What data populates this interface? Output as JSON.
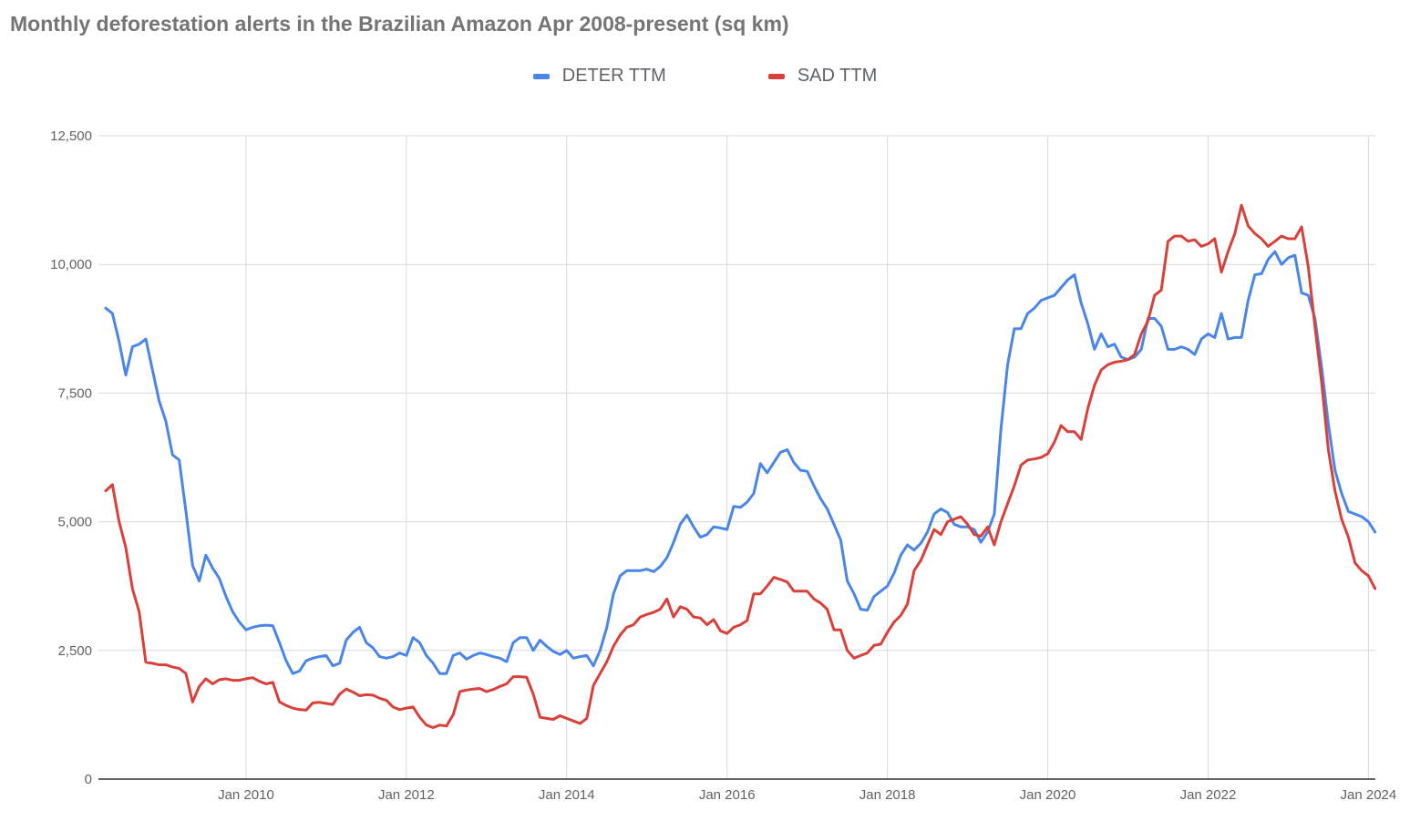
{
  "title": "Monthly deforestation alerts in the Brazilian Amazon Apr 2008-present (sq km)",
  "colors": {
    "deter": "#4a86e8",
    "sad": "#d9403a",
    "grid": "#d9d9d9",
    "axis": "#333333"
  },
  "chart_data": {
    "type": "line",
    "title": "Monthly deforestation alerts in the Brazilian Amazon Apr 2008-present (sq km)",
    "xlabel": "",
    "ylabel": "",
    "legend_position": "top",
    "grid": true,
    "x_start": "2008-04",
    "x_interval": "monthly",
    "x_range": [
      "2008-04",
      "2024-03"
    ],
    "ylim": [
      0,
      12500
    ],
    "y_ticks": [
      "0",
      "2,500",
      "5,000",
      "7,500",
      "10,000",
      "12,500"
    ],
    "y_tick_values": [
      0,
      2500,
      5000,
      7500,
      10000,
      12500
    ],
    "x_ticks": [
      "Jan 2010",
      "Jan 2012",
      "Jan 2014",
      "Jan 2016",
      "Jan 2018",
      "Jan 2020",
      "Jan 2022",
      "Jan 2024"
    ],
    "x_tick_dates": [
      "2010-01",
      "2012-01",
      "2014-01",
      "2016-01",
      "2018-01",
      "2020-01",
      "2022-01",
      "2024-01"
    ],
    "series": [
      {
        "name": "DETER TTM",
        "color": "#4a86e8",
        "values": [
          9150,
          9050,
          8500,
          7850,
          8400,
          8450,
          8550,
          7950,
          7350,
          6950,
          6300,
          6200,
          5200,
          4150,
          3850,
          4350,
          4100,
          3900,
          3550,
          3250,
          3050,
          2900,
          2950,
          2980,
          2990,
          2980,
          2650,
          2300,
          2050,
          2100,
          2300,
          2350,
          2380,
          2400,
          2200,
          2250,
          2700,
          2850,
          2950,
          2650,
          2550,
          2380,
          2350,
          2380,
          2450,
          2400,
          2750,
          2650,
          2400,
          2250,
          2050,
          2050,
          2400,
          2450,
          2330,
          2400,
          2450,
          2420,
          2380,
          2350,
          2280,
          2650,
          2750,
          2750,
          2500,
          2700,
          2580,
          2480,
          2420,
          2500,
          2350,
          2380,
          2400,
          2200,
          2500,
          2950,
          3600,
          3950,
          4050,
          4050,
          4050,
          4080,
          4030,
          4130,
          4300,
          4600,
          4950,
          5130,
          4900,
          4700,
          4750,
          4900,
          4880,
          4850,
          5300,
          5280,
          5380,
          5550,
          6130,
          5950,
          6150,
          6350,
          6400,
          6150,
          6000,
          5980,
          5700,
          5450,
          5250,
          4950,
          4650,
          3850,
          3600,
          3300,
          3280,
          3550,
          3650,
          3750,
          4000,
          4350,
          4550,
          4450,
          4580,
          4800,
          5150,
          5250,
          5180,
          4950,
          4900,
          4900,
          4850,
          4600,
          4800,
          5150,
          6800,
          8050,
          8750,
          8750,
          9050,
          9150,
          9300,
          9350,
          9400,
          9550,
          9700,
          9800,
          9250,
          8850,
          8350,
          8650,
          8400,
          8450,
          8200,
          8150,
          8200,
          8350,
          8950,
          8950,
          8800,
          8350,
          8350,
          8400,
          8350,
          8250,
          8550,
          8650,
          8580,
          9050,
          8550,
          8580,
          8580,
          9300,
          9800,
          9820,
          10100,
          10250,
          10000,
          10130,
          10180,
          9450,
          9400,
          8950,
          8000,
          6900,
          6000,
          5550,
          5200,
          5150,
          5100,
          5000,
          4800
        ]
      },
      {
        "name": "SAD TTM",
        "color": "#d9403a",
        "values": [
          5600,
          5720,
          5000,
          4500,
          3700,
          3250,
          2270,
          2250,
          2220,
          2220,
          2180,
          2150,
          2050,
          1500,
          1800,
          1950,
          1850,
          1930,
          1950,
          1920,
          1920,
          1950,
          1970,
          1900,
          1850,
          1880,
          1500,
          1430,
          1380,
          1350,
          1340,
          1480,
          1490,
          1470,
          1450,
          1650,
          1750,
          1690,
          1620,
          1640,
          1630,
          1570,
          1530,
          1400,
          1350,
          1380,
          1400,
          1200,
          1050,
          1000,
          1050,
          1030,
          1250,
          1700,
          1730,
          1750,
          1760,
          1700,
          1740,
          1800,
          1850,
          1990,
          1990,
          1980,
          1650,
          1200,
          1180,
          1160,
          1230,
          1180,
          1130,
          1080,
          1180,
          1820,
          2050,
          2280,
          2580,
          2800,
          2950,
          3000,
          3150,
          3200,
          3240,
          3300,
          3500,
          3150,
          3350,
          3300,
          3150,
          3130,
          3000,
          3100,
          2880,
          2830,
          2950,
          3000,
          3080,
          3600,
          3600,
          3750,
          3920,
          3880,
          3830,
          3650,
          3650,
          3650,
          3500,
          3420,
          3300,
          2900,
          2900,
          2500,
          2350,
          2400,
          2450,
          2600,
          2620,
          2850,
          3050,
          3180,
          3400,
          4050,
          4250,
          4550,
          4850,
          4750,
          5000,
          5050,
          5100,
          4950,
          4750,
          4720,
          4900,
          4550,
          5000,
          5350,
          5700,
          6100,
          6200,
          6220,
          6250,
          6320,
          6550,
          6870,
          6750,
          6750,
          6600,
          7200,
          7650,
          7950,
          8050,
          8100,
          8120,
          8150,
          8250,
          8650,
          8900,
          9400,
          9500,
          10450,
          10550,
          10550,
          10450,
          10480,
          10350,
          10400,
          10500,
          9850,
          10250,
          10600,
          11150,
          10750,
          10600,
          10500,
          10350,
          10450,
          10550,
          10500,
          10500,
          10730,
          9950,
          8800,
          7700,
          6400,
          5600,
          5050,
          4700,
          4200,
          4050,
          3950,
          3700
        ]
      }
    ]
  }
}
